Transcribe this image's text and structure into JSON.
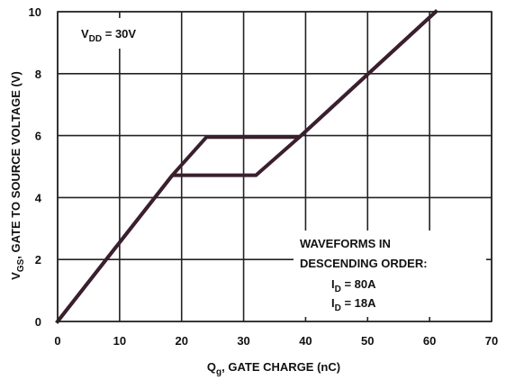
{
  "chart_data": {
    "type": "line",
    "title": "",
    "xlabel": {
      "main": "Q",
      "sub": "g",
      "rest": ", GATE CHARGE (nC)"
    },
    "ylabel": {
      "main": "V",
      "sub": "GS",
      "rest": ", GATE TO SOURCE VOLTAGE (V)"
    },
    "xlim": [
      0,
      70
    ],
    "ylim": [
      0,
      10
    ],
    "xticks": [
      0,
      10,
      20,
      30,
      40,
      50,
      60,
      70
    ],
    "yticks": [
      0,
      2,
      4,
      6,
      8,
      10
    ],
    "grid": true,
    "annotations": {
      "vdd": {
        "main": "V",
        "sub": "DD",
        "rest": " = 30V"
      },
      "waveforms_line1": "WAVEFORMS IN",
      "waveforms_line2": "DESCENDING ORDER:",
      "series_labels": [
        {
          "main": "I",
          "sub": "D",
          "rest": " = 80A"
        },
        {
          "main": "I",
          "sub": "D",
          "rest": " = 18A"
        }
      ]
    },
    "series": [
      {
        "x": [
          0,
          18.5,
          24,
          39,
          61
        ],
        "y": [
          0,
          4.72,
          5.95,
          5.95,
          10
        ]
      },
      {
        "x": [
          0,
          18.5,
          32,
          39,
          61
        ],
        "y": [
          0,
          4.72,
          4.72,
          5.95,
          10
        ]
      }
    ],
    "colors": {
      "line": "#3a1f2e",
      "grid": "#222222",
      "text": "#111111"
    }
  }
}
